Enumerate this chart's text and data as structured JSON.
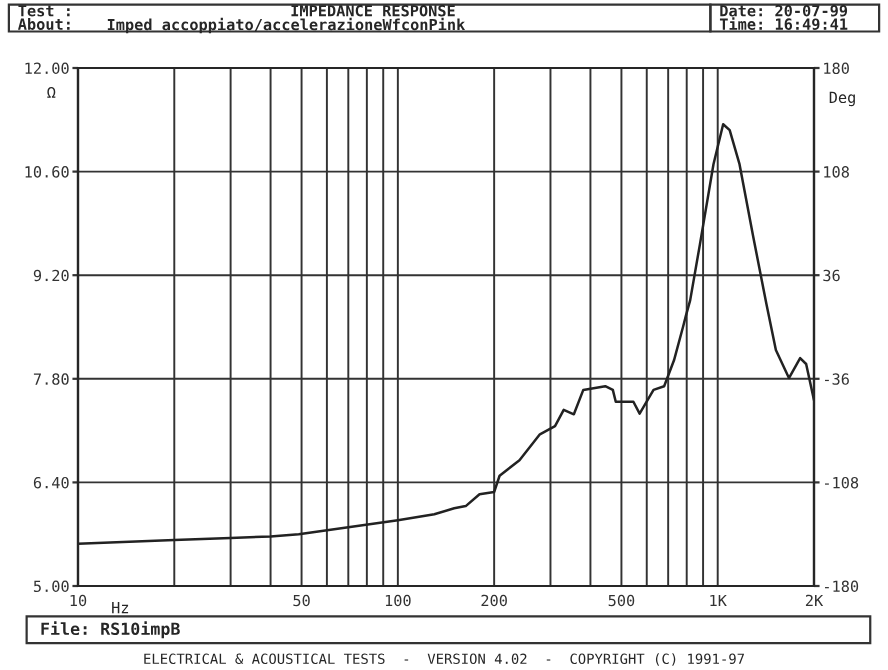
{
  "chart_data": {
    "type": "line",
    "title": "IMPEDANCE RESPONSE",
    "xlabel": "Hz",
    "ylabel": "Ω",
    "y2label": "Deg",
    "annotations": [
      "Test :",
      "About:",
      "Imped accoppiato/accelerazioneWfconPink",
      "Date: 20-07-99",
      "Time: 16:49:41",
      "File: RS10impB",
      "ELECTRICAL & ACOUSTICAL TESTS  -  VERSION 4.02  -  COPYRIGHT (C) 1991-97"
    ],
    "log": "x",
    "grid": true,
    "marker": "none",
    "line_style": "solid",
    "x": [
      10,
      20,
      30,
      40,
      49,
      100,
      130,
      150,
      163,
      180,
      200,
      208,
      240,
      278,
      310,
      330,
      355,
      380,
      445,
      470,
      480,
      545,
      570,
      630,
      680,
      730,
      780,
      795,
      820,
      880,
      970,
      1040,
      1090,
      1170,
      1290,
      1420,
      1520,
      1670,
      1810,
      1890,
      2000
    ],
    "series": [
      {
        "color": "#222222",
        "values": [
          5.57,
          5.62,
          5.65,
          5.67,
          5.7,
          5.89,
          5.97,
          6.05,
          6.08,
          6.24,
          6.27,
          6.49,
          6.7,
          7.05,
          7.16,
          7.38,
          7.32,
          7.65,
          7.7,
          7.65,
          7.49,
          7.49,
          7.33,
          7.65,
          7.7,
          8.05,
          8.51,
          8.65,
          8.86,
          9.62,
          10.7,
          11.24,
          11.16,
          10.7,
          9.73,
          8.81,
          8.19,
          7.81,
          8.08,
          8.0,
          7.51
        ]
      }
    ],
    "xlim": [
      10,
      2000
    ],
    "xticks": [
      {
        "value": 10,
        "label": "10"
      },
      {
        "value": 20,
        "label": null
      },
      {
        "value": 30,
        "label": null
      },
      {
        "value": 40,
        "label": null
      },
      {
        "value": 50,
        "label": "50"
      },
      {
        "value": 60,
        "label": null
      },
      {
        "value": 70,
        "label": null
      },
      {
        "value": 80,
        "label": null
      },
      {
        "value": 90,
        "label": null
      },
      {
        "value": 100,
        "label": "100"
      },
      {
        "value": 200,
        "label": "200"
      },
      {
        "value": 300,
        "label": null
      },
      {
        "value": 400,
        "label": null
      },
      {
        "value": 500,
        "label": "500"
      },
      {
        "value": 600,
        "label": null
      },
      {
        "value": 700,
        "label": null
      },
      {
        "value": 800,
        "label": null
      },
      {
        "value": 900,
        "label": null
      },
      {
        "value": 1000,
        "label": "1K"
      },
      {
        "value": 2000,
        "label": "2K"
      }
    ],
    "ylim": [
      5,
      12
    ],
    "yticks": [
      {
        "value": 5,
        "label": "5.00"
      },
      {
        "value": 6.4,
        "label": "6.40"
      },
      {
        "value": 7.8,
        "label": "7.80"
      },
      {
        "value": 9.2,
        "label": "9.20"
      },
      {
        "value": 10.6,
        "label": "10.60"
      },
      {
        "value": 12,
        "label": "12.00"
      }
    ],
    "y2lim": [
      -180,
      180
    ],
    "y2ticks": [
      -180,
      -108,
      -36,
      36,
      108,
      180
    ]
  }
}
